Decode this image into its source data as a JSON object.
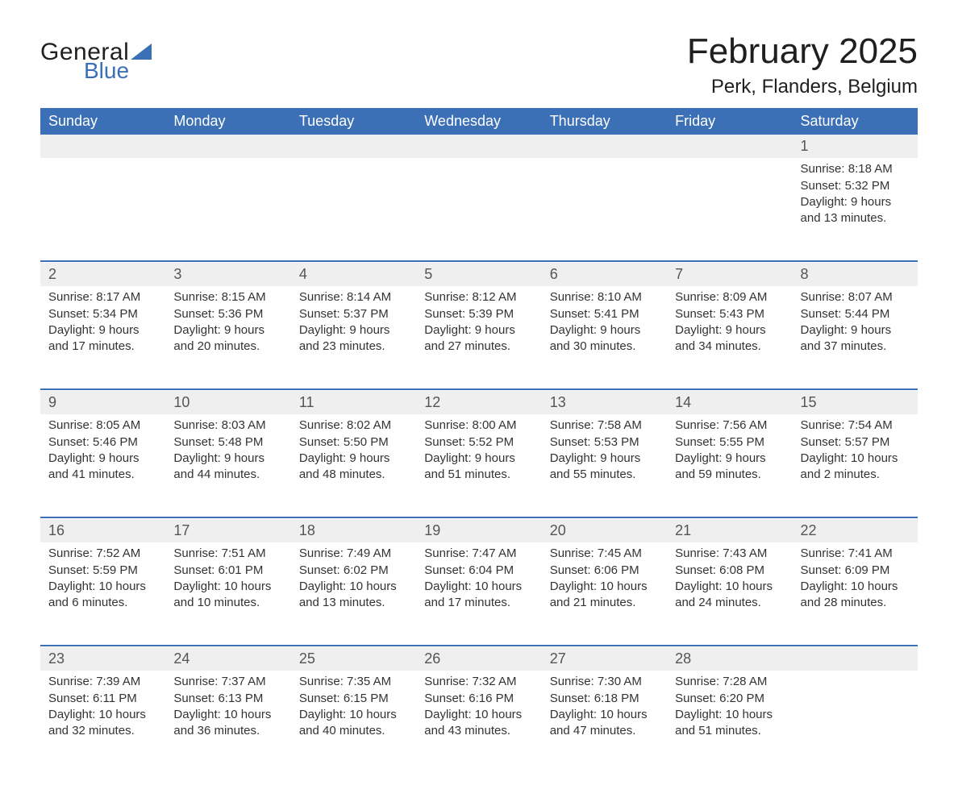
{
  "brand": {
    "word1": "General",
    "word2": "Blue",
    "color_text": "#1f1f1f",
    "color_blue": "#3b6fb6"
  },
  "title": "February 2025",
  "location": "Perk, Flanders, Belgium",
  "colors": {
    "header_bg": "#3b6fb6",
    "header_text": "#ffffff",
    "daynum_bg": "#efefef",
    "row_sep": "#3b6fb6",
    "body_text": "#333333",
    "page_bg": "#ffffff"
  },
  "weekday_labels": [
    "Sunday",
    "Monday",
    "Tuesday",
    "Wednesday",
    "Thursday",
    "Friday",
    "Saturday"
  ],
  "weeks": [
    [
      null,
      null,
      null,
      null,
      null,
      null,
      {
        "n": "1",
        "sunrise": "Sunrise: 8:18 AM",
        "sunset": "Sunset: 5:32 PM",
        "daylight": "Daylight: 9 hours and 13 minutes."
      }
    ],
    [
      {
        "n": "2",
        "sunrise": "Sunrise: 8:17 AM",
        "sunset": "Sunset: 5:34 PM",
        "daylight": "Daylight: 9 hours and 17 minutes."
      },
      {
        "n": "3",
        "sunrise": "Sunrise: 8:15 AM",
        "sunset": "Sunset: 5:36 PM",
        "daylight": "Daylight: 9 hours and 20 minutes."
      },
      {
        "n": "4",
        "sunrise": "Sunrise: 8:14 AM",
        "sunset": "Sunset: 5:37 PM",
        "daylight": "Daylight: 9 hours and 23 minutes."
      },
      {
        "n": "5",
        "sunrise": "Sunrise: 8:12 AM",
        "sunset": "Sunset: 5:39 PM",
        "daylight": "Daylight: 9 hours and 27 minutes."
      },
      {
        "n": "6",
        "sunrise": "Sunrise: 8:10 AM",
        "sunset": "Sunset: 5:41 PM",
        "daylight": "Daylight: 9 hours and 30 minutes."
      },
      {
        "n": "7",
        "sunrise": "Sunrise: 8:09 AM",
        "sunset": "Sunset: 5:43 PM",
        "daylight": "Daylight: 9 hours and 34 minutes."
      },
      {
        "n": "8",
        "sunrise": "Sunrise: 8:07 AM",
        "sunset": "Sunset: 5:44 PM",
        "daylight": "Daylight: 9 hours and 37 minutes."
      }
    ],
    [
      {
        "n": "9",
        "sunrise": "Sunrise: 8:05 AM",
        "sunset": "Sunset: 5:46 PM",
        "daylight": "Daylight: 9 hours and 41 minutes."
      },
      {
        "n": "10",
        "sunrise": "Sunrise: 8:03 AM",
        "sunset": "Sunset: 5:48 PM",
        "daylight": "Daylight: 9 hours and 44 minutes."
      },
      {
        "n": "11",
        "sunrise": "Sunrise: 8:02 AM",
        "sunset": "Sunset: 5:50 PM",
        "daylight": "Daylight: 9 hours and 48 minutes."
      },
      {
        "n": "12",
        "sunrise": "Sunrise: 8:00 AM",
        "sunset": "Sunset: 5:52 PM",
        "daylight": "Daylight: 9 hours and 51 minutes."
      },
      {
        "n": "13",
        "sunrise": "Sunrise: 7:58 AM",
        "sunset": "Sunset: 5:53 PM",
        "daylight": "Daylight: 9 hours and 55 minutes."
      },
      {
        "n": "14",
        "sunrise": "Sunrise: 7:56 AM",
        "sunset": "Sunset: 5:55 PM",
        "daylight": "Daylight: 9 hours and 59 minutes."
      },
      {
        "n": "15",
        "sunrise": "Sunrise: 7:54 AM",
        "sunset": "Sunset: 5:57 PM",
        "daylight": "Daylight: 10 hours and 2 minutes."
      }
    ],
    [
      {
        "n": "16",
        "sunrise": "Sunrise: 7:52 AM",
        "sunset": "Sunset: 5:59 PM",
        "daylight": "Daylight: 10 hours and 6 minutes."
      },
      {
        "n": "17",
        "sunrise": "Sunrise: 7:51 AM",
        "sunset": "Sunset: 6:01 PM",
        "daylight": "Daylight: 10 hours and 10 minutes."
      },
      {
        "n": "18",
        "sunrise": "Sunrise: 7:49 AM",
        "sunset": "Sunset: 6:02 PM",
        "daylight": "Daylight: 10 hours and 13 minutes."
      },
      {
        "n": "19",
        "sunrise": "Sunrise: 7:47 AM",
        "sunset": "Sunset: 6:04 PM",
        "daylight": "Daylight: 10 hours and 17 minutes."
      },
      {
        "n": "20",
        "sunrise": "Sunrise: 7:45 AM",
        "sunset": "Sunset: 6:06 PM",
        "daylight": "Daylight: 10 hours and 21 minutes."
      },
      {
        "n": "21",
        "sunrise": "Sunrise: 7:43 AM",
        "sunset": "Sunset: 6:08 PM",
        "daylight": "Daylight: 10 hours and 24 minutes."
      },
      {
        "n": "22",
        "sunrise": "Sunrise: 7:41 AM",
        "sunset": "Sunset: 6:09 PM",
        "daylight": "Daylight: 10 hours and 28 minutes."
      }
    ],
    [
      {
        "n": "23",
        "sunrise": "Sunrise: 7:39 AM",
        "sunset": "Sunset: 6:11 PM",
        "daylight": "Daylight: 10 hours and 32 minutes."
      },
      {
        "n": "24",
        "sunrise": "Sunrise: 7:37 AM",
        "sunset": "Sunset: 6:13 PM",
        "daylight": "Daylight: 10 hours and 36 minutes."
      },
      {
        "n": "25",
        "sunrise": "Sunrise: 7:35 AM",
        "sunset": "Sunset: 6:15 PM",
        "daylight": "Daylight: 10 hours and 40 minutes."
      },
      {
        "n": "26",
        "sunrise": "Sunrise: 7:32 AM",
        "sunset": "Sunset: 6:16 PM",
        "daylight": "Daylight: 10 hours and 43 minutes."
      },
      {
        "n": "27",
        "sunrise": "Sunrise: 7:30 AM",
        "sunset": "Sunset: 6:18 PM",
        "daylight": "Daylight: 10 hours and 47 minutes."
      },
      {
        "n": "28",
        "sunrise": "Sunrise: 7:28 AM",
        "sunset": "Sunset: 6:20 PM",
        "daylight": "Daylight: 10 hours and 51 minutes."
      },
      null
    ]
  ]
}
